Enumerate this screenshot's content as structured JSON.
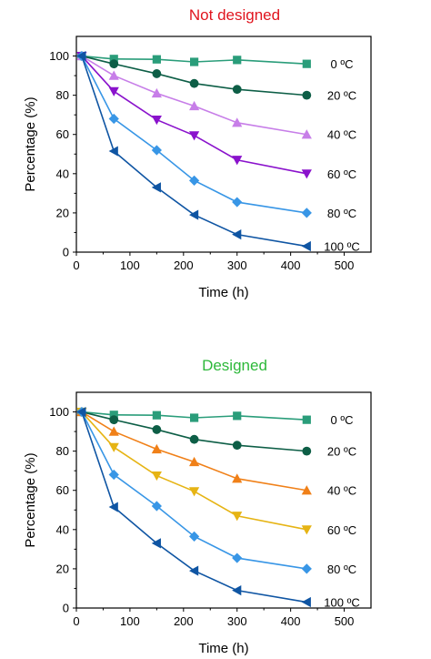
{
  "chart_data": [
    {
      "type": "line",
      "title": "Not designed",
      "title_color": "#e0141e",
      "xlabel": "Time (h)",
      "ylabel": "Percentage (%)",
      "xlim": [
        0,
        550
      ],
      "ylim": [
        0,
        110
      ],
      "xticks": [
        0,
        100,
        200,
        300,
        400,
        500
      ],
      "yticks": [
        0,
        20,
        40,
        60,
        80,
        100
      ],
      "x": [
        10,
        70,
        150,
        220,
        300,
        430
      ],
      "series": [
        {
          "name": "0 ºC",
          "marker": "square",
          "color": "#2a9d7a",
          "values": [
            100,
            98.5,
            98.3,
            97,
            98,
            96
          ]
        },
        {
          "name": "20 ºC",
          "marker": "circle",
          "color": "#0d5e46",
          "values": [
            100,
            96,
            91,
            86,
            83,
            80
          ]
        },
        {
          "name": "40 ºC",
          "marker": "triangle-up",
          "color": "#c77ee8",
          "values": [
            100,
            90,
            81,
            74.5,
            66,
            60
          ]
        },
        {
          "name": "60 ºC",
          "marker": "triangle-down",
          "color": "#8a12cc",
          "values": [
            100,
            82,
            67.5,
            59.5,
            47,
            40
          ]
        },
        {
          "name": "80 ºC",
          "marker": "diamond",
          "color": "#3896e6",
          "values": [
            100,
            68,
            52,
            36.5,
            25.5,
            20
          ]
        },
        {
          "name": "100 ºC",
          "marker": "triangle-left",
          "color": "#0f55a3",
          "values": [
            100,
            51.5,
            33,
            19,
            9,
            3
          ]
        }
      ]
    },
    {
      "type": "line",
      "title": "Designed",
      "title_color": "#2db83a",
      "xlabel": "Time (h)",
      "ylabel": "Percentage (%)",
      "xlim": [
        0,
        550
      ],
      "ylim": [
        0,
        110
      ],
      "xticks": [
        0,
        100,
        200,
        300,
        400,
        500
      ],
      "yticks": [
        0,
        20,
        40,
        60,
        80,
        100
      ],
      "x": [
        10,
        70,
        150,
        220,
        300,
        430
      ],
      "series": [
        {
          "name": "0 ºC",
          "marker": "square",
          "color": "#2a9d7a",
          "values": [
            100,
            98.5,
            98.3,
            97,
            98,
            96
          ]
        },
        {
          "name": "20 ºC",
          "marker": "circle",
          "color": "#0d5e46",
          "values": [
            100,
            96,
            91,
            86,
            83,
            80
          ]
        },
        {
          "name": "40 ºC",
          "marker": "triangle-up",
          "color": "#f08018",
          "values": [
            100,
            90,
            81,
            74.5,
            66,
            60
          ]
        },
        {
          "name": "60 ºC",
          "marker": "triangle-down",
          "color": "#e6b414",
          "values": [
            100,
            82,
            67.5,
            59.5,
            47,
            40
          ]
        },
        {
          "name": "80 ºC",
          "marker": "diamond",
          "color": "#3896e6",
          "values": [
            100,
            68,
            52,
            36.5,
            25.5,
            20
          ]
        },
        {
          "name": "100 ºC",
          "marker": "triangle-left",
          "color": "#0f55a3",
          "values": [
            100,
            51.5,
            33,
            19,
            9,
            3
          ]
        }
      ]
    }
  ]
}
